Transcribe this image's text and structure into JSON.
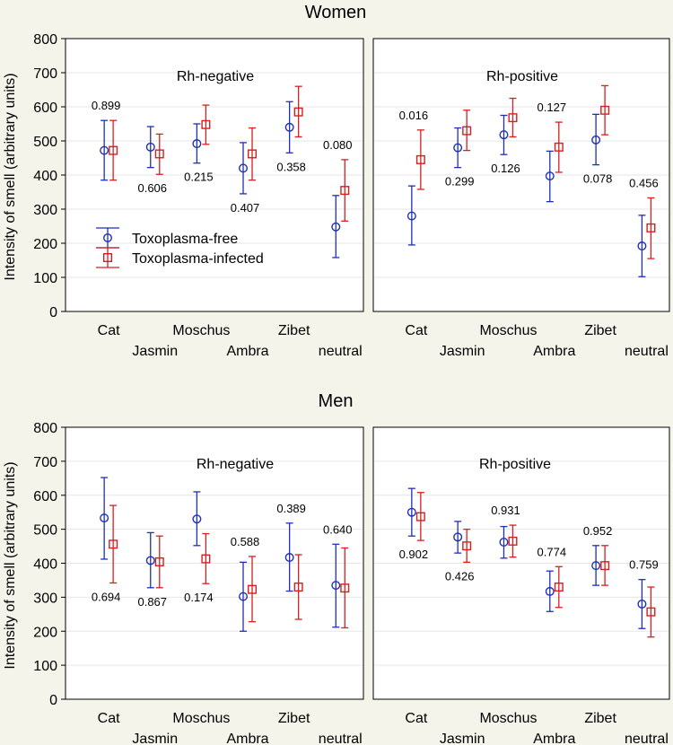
{
  "y_axis_label": "Intensity of smell (arbitrary units)",
  "legend": {
    "free": "Toxoplasma-free",
    "infected": "Toxoplasma-infected"
  },
  "colors": {
    "free": "#1f2fb5",
    "infected": "#d81e1e"
  },
  "chart_data": [
    {
      "type": "scatter",
      "section": "Women",
      "title": "Rh-negative",
      "categories": [
        "Cat",
        "Jasmin",
        "Moschus",
        "Ambra",
        "Zibet",
        "neutral"
      ],
      "ylim": [
        0,
        800
      ],
      "yticks": [
        0,
        100,
        200,
        300,
        400,
        500,
        600,
        700,
        800
      ],
      "grid": true,
      "series": [
        {
          "name": "Toxoplasma-free",
          "means": [
            472,
            482,
            492,
            420,
            540,
            248
          ],
          "lower": [
            385,
            422,
            435,
            345,
            465,
            158
          ],
          "upper": [
            560,
            542,
            550,
            495,
            615,
            340
          ]
        },
        {
          "name": "Toxoplasma-infected",
          "means": [
            472,
            462,
            548,
            462,
            585,
            355
          ],
          "lower": [
            385,
            402,
            490,
            385,
            512,
            265
          ],
          "upper": [
            560,
            520,
            605,
            538,
            660,
            445
          ]
        }
      ],
      "p_values": [
        "0.899",
        "0.606",
        "0.215",
        "0.407",
        "0.358",
        "0.080"
      ],
      "p_positions": [
        "above",
        "below",
        "below",
        "below",
        "below",
        "above"
      ]
    },
    {
      "type": "scatter",
      "section": "Women",
      "title": "Rh-positive",
      "categories": [
        "Cat",
        "Jasmin",
        "Moschus",
        "Ambra",
        "Zibet",
        "neutral"
      ],
      "ylim": [
        0,
        800
      ],
      "yticks": [
        0,
        100,
        200,
        300,
        400,
        500,
        600,
        700,
        800
      ],
      "grid": true,
      "series": [
        {
          "name": "Toxoplasma-free",
          "means": [
            280,
            480,
            518,
            397,
            503,
            192
          ],
          "lower": [
            195,
            422,
            460,
            322,
            430,
            102
          ],
          "upper": [
            368,
            538,
            575,
            470,
            578,
            282
          ]
        },
        {
          "name": "Toxoplasma-infected",
          "means": [
            445,
            530,
            568,
            482,
            590,
            245
          ],
          "lower": [
            358,
            472,
            512,
            408,
            518,
            155
          ],
          "upper": [
            532,
            590,
            625,
            555,
            662,
            333
          ]
        }
      ],
      "p_values": [
        "0.016",
        "0.299",
        "0.126",
        "0.127",
        "0.078",
        "0.456"
      ],
      "p_positions": [
        "above",
        "below",
        "below",
        "above",
        "below",
        "above"
      ]
    },
    {
      "type": "scatter",
      "section": "Men",
      "title": "Rh-negative",
      "categories": [
        "Cat",
        "Jasmin",
        "Moschus",
        "Ambra",
        "Zibet",
        "neutral"
      ],
      "ylim": [
        0,
        800
      ],
      "yticks": [
        0,
        100,
        200,
        300,
        400,
        500,
        600,
        700,
        800
      ],
      "grid": true,
      "series": [
        {
          "name": "Toxoplasma-free",
          "means": [
            533,
            408,
            530,
            302,
            417,
            335
          ],
          "lower": [
            412,
            328,
            452,
            200,
            318,
            212
          ],
          "upper": [
            652,
            490,
            610,
            403,
            518,
            456
          ]
        },
        {
          "name": "Toxoplasma-infected",
          "means": [
            456,
            404,
            413,
            323,
            330,
            327
          ],
          "lower": [
            342,
            328,
            340,
            228,
            235,
            210
          ],
          "upper": [
            570,
            480,
            487,
            420,
            425,
            445
          ]
        }
      ],
      "p_values": [
        "0.694",
        "0.867",
        "0.174",
        "0.588",
        "0.389",
        "0.640"
      ],
      "p_positions": [
        "below",
        "below",
        "below",
        "above",
        "above",
        "above"
      ]
    },
    {
      "type": "scatter",
      "section": "Men",
      "title": "Rh-positive",
      "categories": [
        "Cat",
        "Jasmin",
        "Moschus",
        "Ambra",
        "Zibet",
        "neutral"
      ],
      "ylim": [
        0,
        800
      ],
      "yticks": [
        0,
        100,
        200,
        300,
        400,
        500,
        600,
        700,
        800
      ],
      "grid": true,
      "series": [
        {
          "name": "Toxoplasma-free",
          "means": [
            550,
            477,
            462,
            317,
            393,
            280
          ],
          "lower": [
            480,
            430,
            415,
            258,
            335,
            208
          ],
          "upper": [
            620,
            523,
            508,
            377,
            452,
            352
          ]
        },
        {
          "name": "Toxoplasma-infected",
          "means": [
            537,
            451,
            465,
            330,
            393,
            257
          ],
          "lower": [
            467,
            403,
            418,
            270,
            335,
            183
          ],
          "upper": [
            608,
            500,
            512,
            390,
            452,
            330
          ]
        }
      ],
      "p_values": [
        "0.902",
        "0.426",
        "0.931",
        "0.774",
        "0.952",
        "0.759"
      ],
      "p_positions": [
        "below",
        "below",
        "above",
        "above",
        "above",
        "above"
      ]
    }
  ],
  "sections": [
    "Women",
    "Men"
  ]
}
